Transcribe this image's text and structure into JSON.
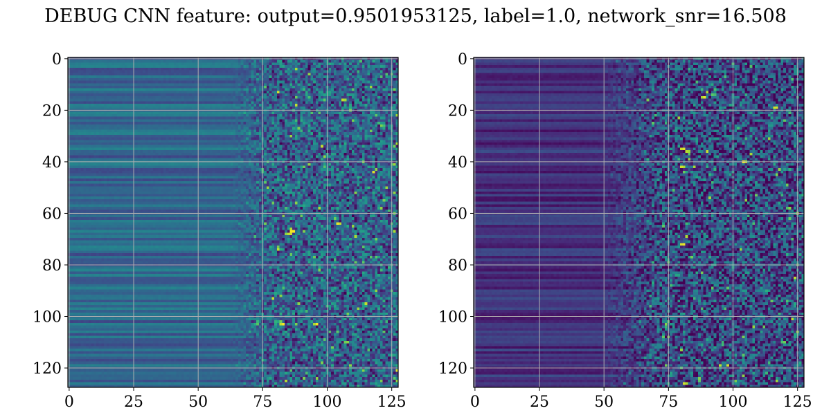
{
  "figure": {
    "title": "DEBUG CNN feature: output=0.9501953125, label=1.0, network_snr=16.508"
  },
  "chart_data": [
    {
      "type": "heatmap",
      "title": "",
      "xlabel": "",
      "ylabel": "",
      "rows": 128,
      "cols": 128,
      "xlim": [
        -0.5,
        127.5
      ],
      "ylim": [
        127.5,
        -0.5
      ],
      "x_ticks": [
        0,
        25,
        50,
        75,
        100,
        125
      ],
      "y_ticks": [
        0,
        20,
        40,
        60,
        80,
        100,
        120
      ],
      "grid": true,
      "colormap": "viridis",
      "description_of_values": "smooth horizontal bands for columns 0-60, increasingly noisy speckle for columns 70-127",
      "value_profile": {
        "band_level": 0.33,
        "band_variation": 0.12,
        "noise_start_col": 62,
        "noise_full_col": 78,
        "noise_mean": 0.3,
        "noise_spread": 0.28,
        "hot_spots": [
          [
            103,
            82
          ],
          [
            68,
            85
          ],
          [
            67,
            86
          ],
          [
            16,
            106
          ],
          [
            64,
            104
          ],
          [
            103,
            95
          ]
        ]
      }
    },
    {
      "type": "heatmap",
      "title": "",
      "xlabel": "",
      "ylabel": "",
      "rows": 128,
      "cols": 128,
      "xlim": [
        -0.5,
        127.5
      ],
      "ylim": [
        127.5,
        -0.5
      ],
      "x_ticks": [
        0,
        25,
        50,
        75,
        100,
        125
      ],
      "y_ticks": [
        0,
        20,
        40,
        60,
        80,
        100,
        120
      ],
      "grid": true,
      "colormap": "viridis",
      "description_of_values": "dark smooth bands for columns 0-50, bright sparse speckle with vertical streak near column 80",
      "value_profile": {
        "band_level": 0.14,
        "band_variation": 0.1,
        "noise_start_col": 48,
        "noise_full_col": 72,
        "noise_mean": 0.22,
        "noise_spread": 0.32,
        "hot_spots": [
          [
            40,
            104
          ],
          [
            35,
            80
          ],
          [
            36,
            82
          ],
          [
            72,
            80
          ],
          [
            126,
            81
          ],
          [
            15,
            88
          ],
          [
            19,
            116
          ],
          [
            42,
            80
          ]
        ]
      }
    }
  ],
  "colors": {
    "viridis_stops": [
      "#440154",
      "#472c7a",
      "#3b518b",
      "#2c718e",
      "#21908d",
      "#27ad81",
      "#5cc863",
      "#aadc32",
      "#fde725"
    ],
    "grid": "#b0b0b0",
    "axis": "#000000"
  }
}
